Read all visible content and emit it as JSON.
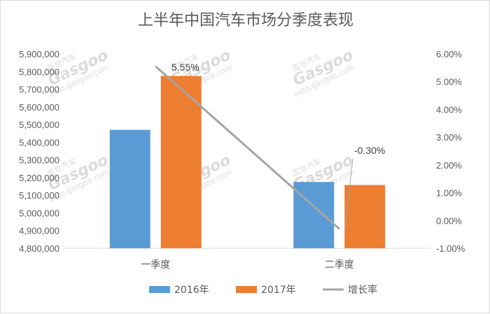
{
  "chart_data": {
    "type": "bar",
    "title": "上半年中国汽车市场分季度表现",
    "categories": [
      "一季度",
      "二季度"
    ],
    "series": [
      {
        "name": "2016年",
        "type": "bar",
        "axis": "left",
        "color": "#5b9bd5",
        "values": [
          5470000,
          5175000
        ]
      },
      {
        "name": "2017年",
        "type": "bar",
        "axis": "left",
        "color": "#ed7d31",
        "values": [
          5775000,
          5158000
        ]
      },
      {
        "name": "增长率",
        "type": "line",
        "axis": "right",
        "color": "#a5a5a5",
        "values": [
          5.55,
          -0.3
        ]
      }
    ],
    "data_labels": [
      "5.55%",
      "-0.30%"
    ],
    "ylim": [
      4800000,
      5900000
    ],
    "y_ticks": [
      "4,800,000",
      "4,900,000",
      "5,000,000",
      "5,100,000",
      "5,200,000",
      "5,300,000",
      "5,400,000",
      "5,500,000",
      "5,600,000",
      "5,700,000",
      "5,800,000",
      "5,900,000"
    ],
    "y2lim": [
      -1,
      6
    ],
    "y2_ticks": [
      "-1.00%",
      "0.00%",
      "1.00%",
      "2.00%",
      "3.00%",
      "4.00%",
      "5.00%",
      "6.00%"
    ],
    "grid": false,
    "legend_position": "bottom"
  },
  "watermark": {
    "brand": "盖世汽车",
    "logo": "Gasgoo",
    "url": "auto.gasgoo.com"
  }
}
